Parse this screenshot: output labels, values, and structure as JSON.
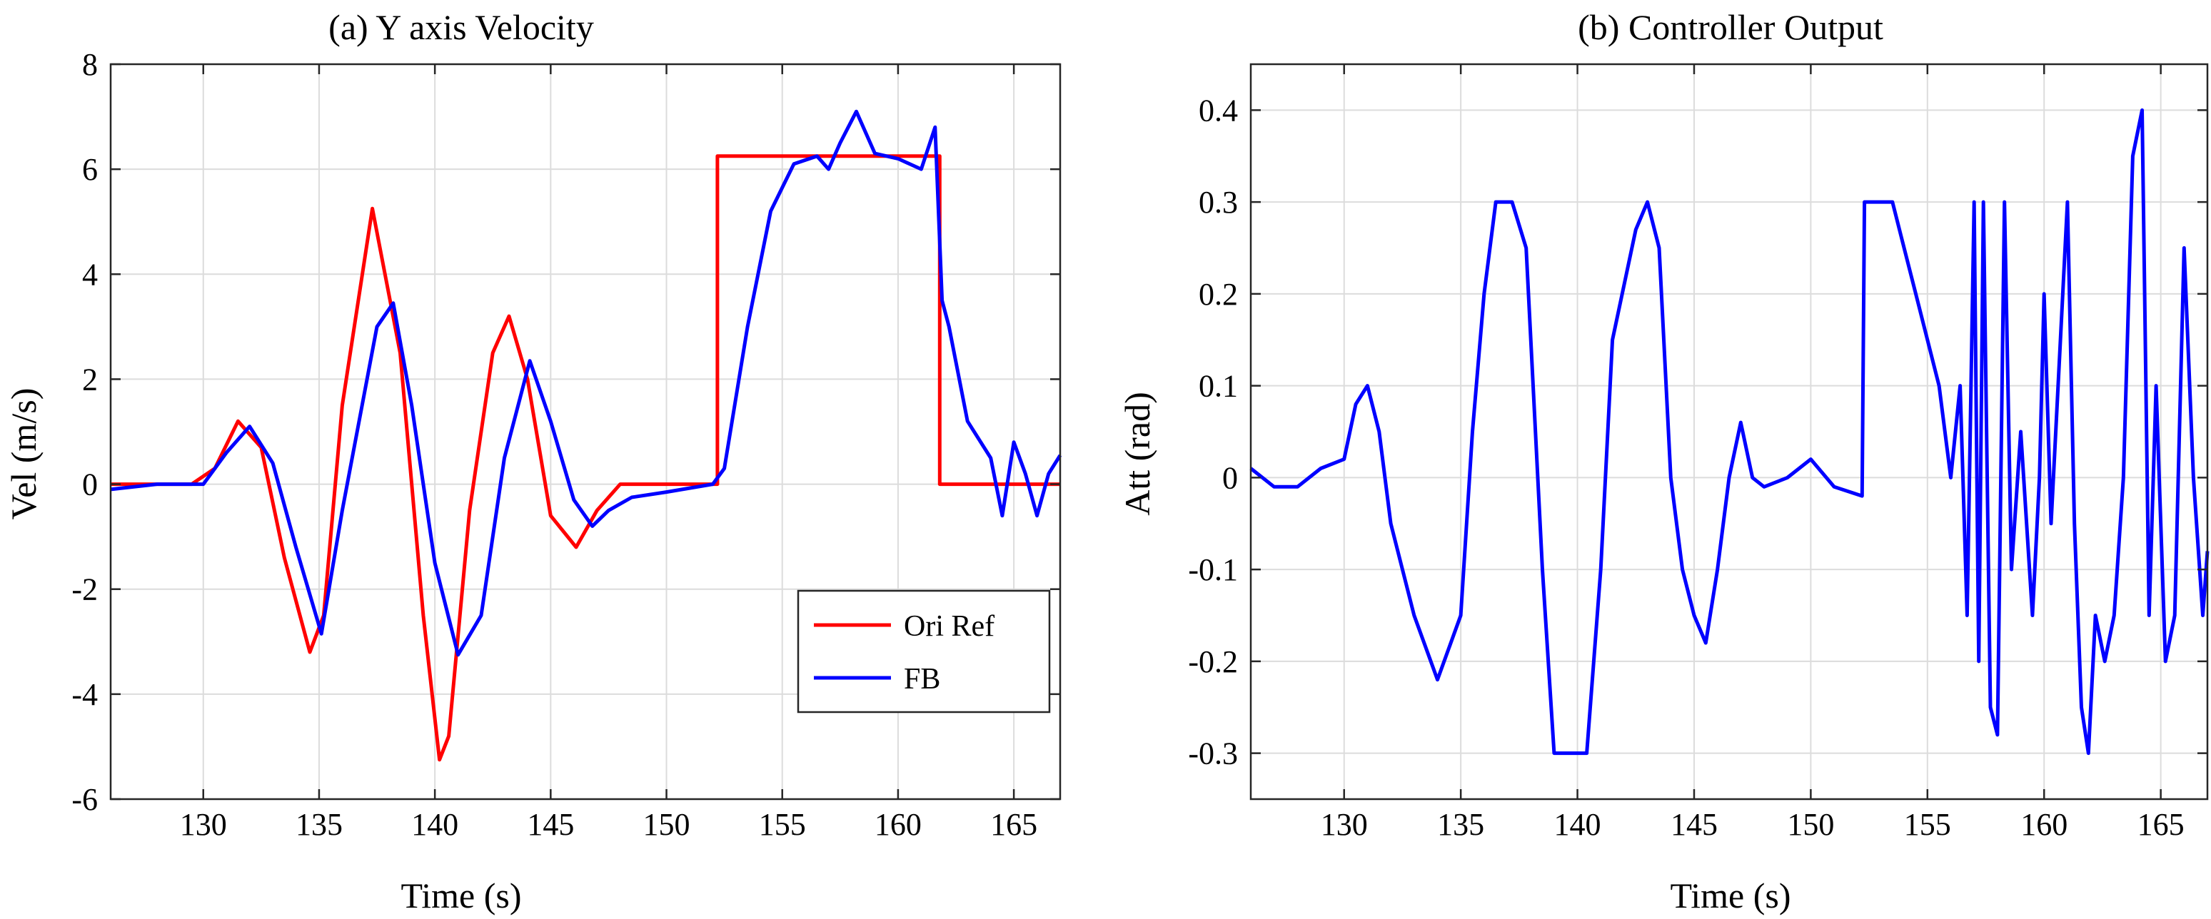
{
  "chart_data": [
    {
      "type": "line",
      "title": "(a) Y axis Velocity",
      "xlabel": "Time (s)",
      "ylabel": "Vel (m/s)",
      "xlim": [
        126,
        167
      ],
      "ylim": [
        -6,
        8
      ],
      "xticks": [
        130,
        135,
        140,
        145,
        150,
        155,
        160,
        165
      ],
      "yticks": [
        -6,
        -4,
        -2,
        0,
        2,
        4,
        6,
        8
      ],
      "grid": true,
      "legend_position": "bottom-right",
      "series": [
        {
          "name": "Ori Ref",
          "color": "#ff0000",
          "x": [
            126,
            129.5,
            130.5,
            131.5,
            132.5,
            133.5,
            134.6,
            135.2,
            136.0,
            137.3,
            138.5,
            139.5,
            140.2,
            140.6,
            141.5,
            142.5,
            143.2,
            144.0,
            145.0,
            146.1,
            147.0,
            148.0,
            152.2,
            152.2,
            161.8,
            161.8,
            167
          ],
          "y": [
            0,
            0,
            0.3,
            1.2,
            0.7,
            -1.4,
            -3.2,
            -2.5,
            1.5,
            5.25,
            2.5,
            -2.5,
            -5.25,
            -4.8,
            -0.5,
            2.5,
            3.2,
            2.0,
            -0.6,
            -1.2,
            -0.5,
            0,
            0,
            6.25,
            6.25,
            0,
            0
          ]
        },
        {
          "name": "FB",
          "color": "#0000ff",
          "x": [
            126,
            128,
            130,
            131,
            132,
            133,
            134,
            135.1,
            136,
            137.5,
            138.2,
            139,
            140,
            141,
            142,
            143,
            144.1,
            145,
            146,
            146.8,
            147.5,
            148.5,
            150,
            152.0,
            152.5,
            153.5,
            154.5,
            155.5,
            156.5,
            157.0,
            157.5,
            158.2,
            159,
            160,
            161,
            161.6,
            161.9,
            162.2,
            163,
            164,
            164.5,
            165,
            165.5,
            166,
            166.5,
            167
          ],
          "y": [
            -0.1,
            0,
            0,
            0.6,
            1.1,
            0.4,
            -1.2,
            -2.85,
            -0.5,
            3.0,
            3.45,
            1.5,
            -1.5,
            -3.25,
            -2.5,
            0.5,
            2.35,
            1.2,
            -0.3,
            -0.8,
            -0.5,
            -0.25,
            -0.15,
            0,
            0.3,
            3.0,
            5.2,
            6.1,
            6.25,
            6.0,
            6.5,
            7.1,
            6.3,
            6.2,
            6.0,
            6.8,
            3.5,
            3.0,
            1.2,
            0.5,
            -0.6,
            0.8,
            0.2,
            -0.6,
            0.2,
            0.55
          ]
        }
      ]
    },
    {
      "type": "line",
      "title": "(b) Controller Output",
      "xlabel": "Time (s)",
      "ylabel": "Att (rad)",
      "xlim": [
        126,
        167
      ],
      "ylim": [
        -0.35,
        0.45
      ],
      "xticks": [
        130,
        135,
        140,
        145,
        150,
        155,
        160,
        165
      ],
      "yticks": [
        -0.3,
        -0.2,
        -0.1,
        0,
        0.1,
        0.2,
        0.3,
        0.4
      ],
      "ytick_labels": [
        "-0.3",
        "-0.2",
        "-0.1",
        "0",
        "0.1",
        "0.2",
        "0.3",
        "0.4"
      ],
      "grid": true,
      "series": [
        {
          "name": "Att",
          "color": "#0000ff",
          "x": [
            126,
            127,
            128,
            129,
            130,
            130.5,
            131,
            131.5,
            132,
            133,
            134,
            135,
            135.5,
            136,
            136.5,
            137.2,
            137.8,
            138.5,
            139,
            140.4,
            141,
            141.5,
            142.5,
            143,
            143.5,
            144,
            144.5,
            145,
            145.5,
            146,
            146.5,
            147,
            147.5,
            148,
            149,
            150,
            151,
            152.2,
            152.3,
            153.5,
            154,
            154.5,
            155,
            155.5,
            156,
            156.4,
            156.7,
            157.0,
            157.2,
            157.4,
            157.7,
            158.0,
            158.3,
            158.6,
            159,
            159.5,
            159.8,
            160.0,
            160.3,
            160.7,
            161.0,
            161.3,
            161.6,
            161.9,
            162.2,
            162.6,
            163.0,
            163.4,
            163.8,
            164.2,
            164.5,
            164.8,
            165.2,
            165.6,
            166,
            166.4,
            166.8,
            167
          ],
          "y": [
            0.01,
            -0.01,
            -0.01,
            0.01,
            0.02,
            0.08,
            0.1,
            0.05,
            -0.05,
            -0.15,
            -0.22,
            -0.15,
            0.05,
            0.2,
            0.3,
            0.3,
            0.25,
            -0.1,
            -0.3,
            -0.3,
            -0.1,
            0.15,
            0.27,
            0.3,
            0.25,
            0.0,
            -0.1,
            -0.15,
            -0.18,
            -0.1,
            0.0,
            0.06,
            0.0,
            -0.01,
            0.0,
            0.02,
            -0.01,
            -0.02,
            0.3,
            0.3,
            0.25,
            0.2,
            0.15,
            0.1,
            0.0,
            0.1,
            -0.15,
            0.3,
            -0.2,
            0.3,
            -0.25,
            -0.28,
            0.3,
            -0.1,
            0.05,
            -0.15,
            0.0,
            0.2,
            -0.05,
            0.15,
            0.3,
            -0.05,
            -0.25,
            -0.3,
            -0.15,
            -0.2,
            -0.15,
            0.0,
            0.35,
            0.4,
            -0.15,
            0.1,
            -0.2,
            -0.15,
            0.25,
            0.0,
            -0.15,
            -0.08
          ]
        }
      ]
    }
  ]
}
